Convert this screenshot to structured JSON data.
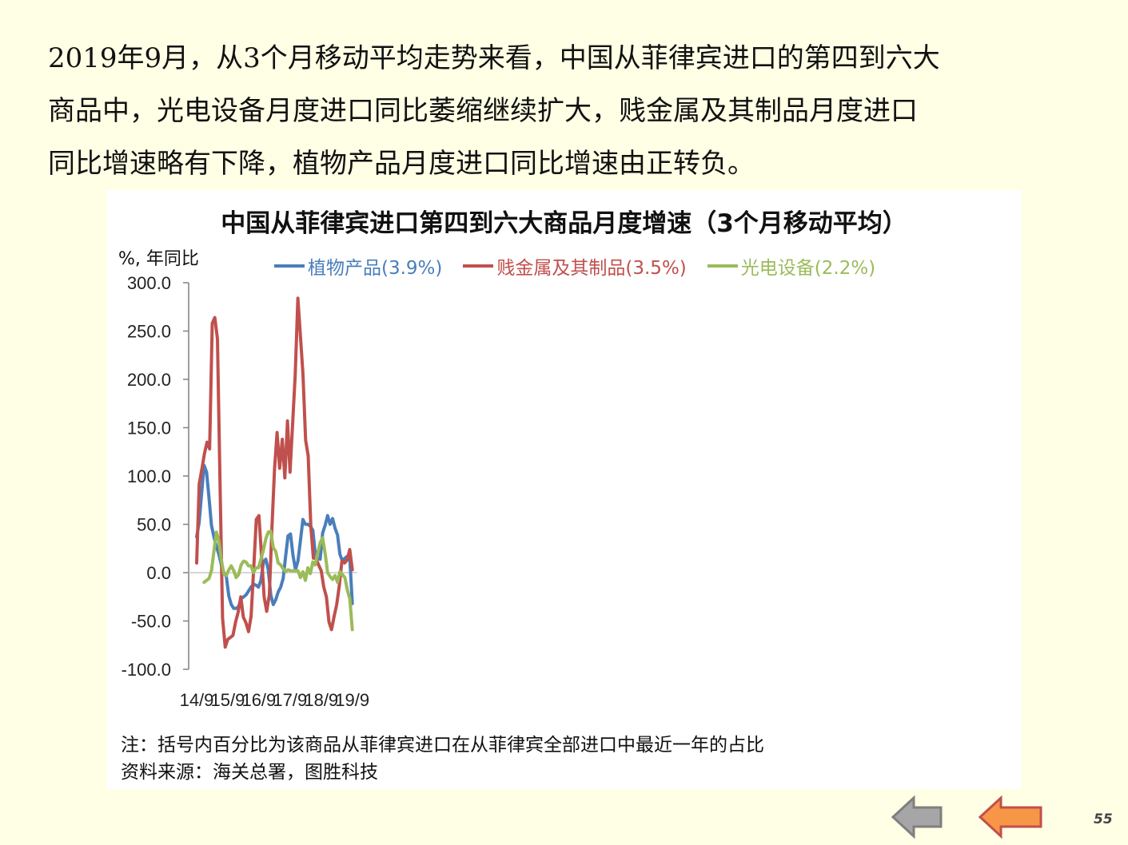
{
  "intro": {
    "line1": "2019年9月，从3个月移动平均走势来看，中国从菲律宾进口的第四到六大",
    "line2": "商品中，光电设备月度进口同比萎缩继续扩大，贱金属及其制品月度进口",
    "line3": "同比增速略有下降，植物产品月度进口同比增速由正转负。"
  },
  "chart": {
    "title": "中国从菲律宾进口第四到六大商品月度增速（3个月移动平均）",
    "unit": "%, 年同比",
    "note1": "注：括号内百分比为该商品从菲律宾进口在从菲律宾全部进口中最近一年的占比",
    "note2": "资料来源：海关总署，图胜科技"
  },
  "nav": {
    "back_icon": "back-arrow-icon",
    "forward_icon": "forward-arrow-icon"
  },
  "page_number": "55",
  "chart_data": {
    "type": "line",
    "title": "中国从菲律宾进口第四到六大商品月度增速（3个月移动平均）",
    "ylabel": "%, 年同比",
    "ylim": [
      -100,
      300
    ],
    "yticks": [
      300,
      250,
      200,
      150,
      100,
      50,
      0,
      -50,
      -100
    ],
    "ytick_labels": [
      "300.0",
      "250.0",
      "200.0",
      "150.0",
      "100.0",
      "50.0",
      "0.0",
      "-50.0",
      "-100.0"
    ],
    "xtick_labels": [
      "14/9",
      "15/9",
      "16/9",
      "17/9",
      "18/9",
      "19/9"
    ],
    "x_start": "2014-09",
    "x_end": "2019-09",
    "grid": false,
    "legend_position": "top",
    "series": [
      {
        "name": "植物产品(3.9%)",
        "color": "#4A7EBB",
        "values": [
          37,
          52,
          82,
          111,
          104,
          77,
          49,
          37,
          27,
          19,
          8,
          0,
          -4,
          -24,
          -33,
          -37,
          -37,
          -35,
          -27,
          -25,
          -23,
          -19,
          -15,
          -12,
          -13,
          -15,
          -8,
          10,
          14,
          3,
          -23,
          -33,
          -28,
          -20,
          -15,
          -6,
          17,
          38,
          40,
          18,
          3,
          12,
          33,
          55,
          50,
          50,
          48,
          44,
          20,
          15,
          14,
          41,
          49,
          59,
          50,
          56,
          46,
          39,
          19,
          12,
          15,
          17,
          14,
          -32
        ]
      },
      {
        "name": "贱金属及其制品(3.5%)",
        "color": "#C0504D",
        "values": [
          10,
          92,
          107,
          123,
          135,
          128,
          258,
          264,
          242,
          94,
          -47,
          -77,
          -69,
          -67,
          -65,
          -51,
          -41,
          -25,
          -46,
          -52,
          -61,
          -45,
          5,
          55,
          59,
          18,
          -25,
          -40,
          -23,
          45,
          107,
          145,
          108,
          138,
          98,
          157,
          104,
          155,
          205,
          284,
          245,
          205,
          137,
          121,
          48,
          15,
          15,
          8,
          2,
          -15,
          -25,
          -51,
          -59,
          -45,
          -33,
          -13,
          12,
          10,
          13,
          24,
          3
        ]
      },
      {
        "name": "光电设备(2.2%)",
        "color": "#9BBB59",
        "values": [
          -10,
          -8,
          -6,
          2,
          22,
          42,
          33,
          13,
          -1,
          -3,
          3,
          7,
          2,
          -5,
          -2,
          8,
          12,
          11,
          7,
          7,
          0,
          5,
          5,
          14,
          23,
          35,
          42,
          43,
          26,
          22,
          10,
          8,
          4,
          1,
          3,
          2,
          2,
          2,
          2,
          -5,
          1,
          -8,
          5,
          -1,
          11,
          8,
          20,
          31,
          36,
          20,
          0,
          -4,
          -7,
          -3,
          -10,
          1,
          -2,
          -5,
          -18,
          -27,
          -59
        ]
      }
    ],
    "series_x_offsets": [
      0,
      0,
      3
    ]
  }
}
